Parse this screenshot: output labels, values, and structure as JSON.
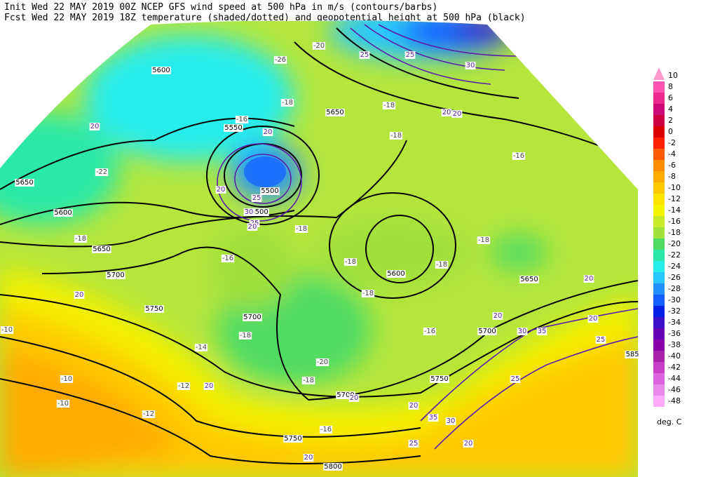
{
  "header": {
    "line1": "Init  Wed 22 MAY 2019 00Z  NCEP GFS wind speed at 500 hPa in m/s (contours/barbs)",
    "line2": "Fcst Wed 22 MAY 2019 18Z  temperature (shaded/dotted) and geopotential height at 500 hPa (black)"
  },
  "colorbar": {
    "unit": "deg. C",
    "levels": [
      10,
      8,
      6,
      4,
      2,
      0,
      -2,
      -4,
      -6,
      -8,
      -10,
      -12,
      -14,
      -16,
      -18,
      -20,
      -22,
      -24,
      -26,
      -28,
      -30,
      -32,
      -34,
      -36,
      -38,
      -40,
      -42,
      -44,
      -46,
      -48
    ],
    "colors": [
      "#ff99cc",
      "#ff55b0",
      "#ee2a90",
      "#cc0a78",
      "#cc0040",
      "#dd0000",
      "#ff2200",
      "#ff5a00",
      "#ff8c00",
      "#ffaa00",
      "#ffc800",
      "#ffe400",
      "#f4f400",
      "#c8ec2a",
      "#a0e03a",
      "#50dc64",
      "#2ae8a8",
      "#28ecec",
      "#28c8ff",
      "#2290ff",
      "#1460ff",
      "#0020e8",
      "#3a10c8",
      "#6400b4",
      "#8a00a8",
      "#aa22aa",
      "#c840c8",
      "#dc64dc",
      "#ec88ec",
      "#ffaaff"
    ]
  },
  "height_labels": [
    "5600",
    "5650",
    "5550",
    "5650",
    "5600",
    "5650",
    "5700",
    "5750",
    "5700",
    "5500",
    "5500",
    "5600",
    "5650",
    "5700",
    "5750",
    "5700",
    "5750",
    "5800",
    "585"
  ],
  "temperature_labels": [
    "-18",
    "-18",
    "-18",
    "-18",
    "-18",
    "-18",
    "-18",
    "-16",
    "-16",
    "-16",
    "-14",
    "-12",
    "-10",
    "-10",
    "-10",
    "-12",
    "-20",
    "-18",
    "-16",
    "-22",
    "-26",
    "-20",
    "-18",
    "-16",
    "-18",
    "-18"
  ],
  "wind_labels": [
    "20",
    "20",
    "20",
    "25",
    "30",
    "25",
    "20",
    "25",
    "25",
    "30",
    "20",
    "20",
    "20",
    "20",
    "20",
    "20",
    "20",
    "20",
    "20",
    "25",
    "30",
    "35",
    "25",
    "35",
    "30",
    "25",
    "20",
    "20"
  ]
}
